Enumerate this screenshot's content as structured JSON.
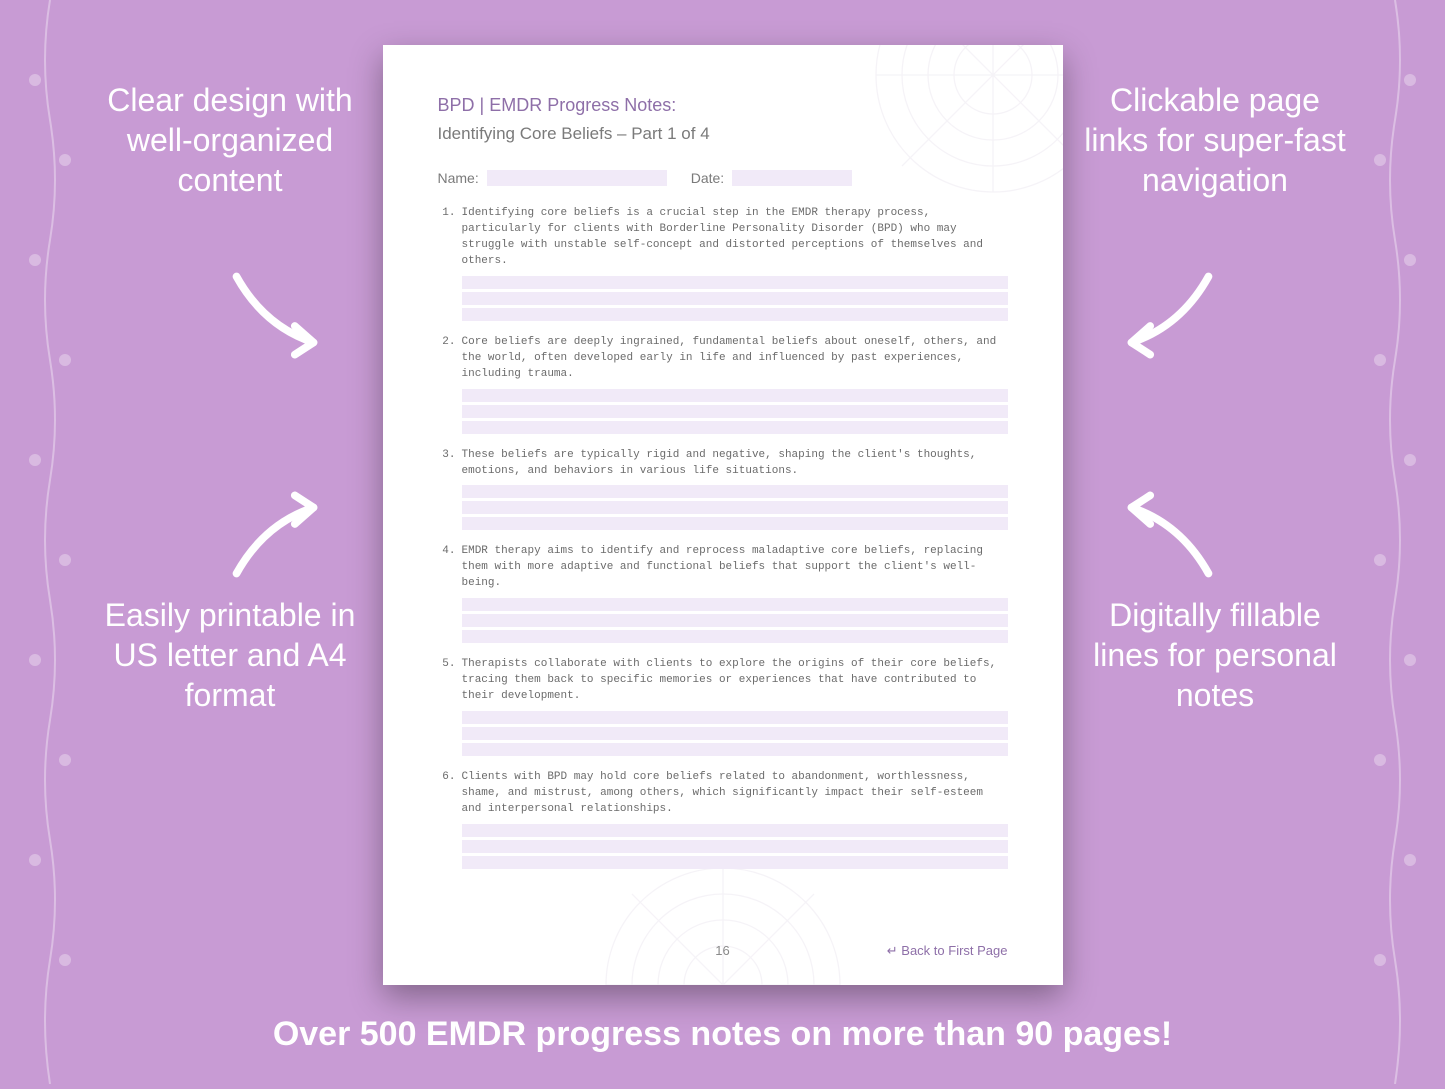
{
  "background_color": "#c89bd4",
  "callouts": {
    "top_left": "Clear design with well-organized content",
    "top_right": "Clickable page links for super-fast navigation",
    "bottom_left": "Easily printable in US letter and A4 format",
    "bottom_right": "Digitally fillable lines for personal notes"
  },
  "tagline": "Over 500 EMDR progress notes on more than 90 pages!",
  "document": {
    "title_line1": "BPD | EMDR Progress Notes:",
    "title_line2": "Identifying Core Beliefs  – Part 1 of 4",
    "name_label": "Name:",
    "date_label": "Date:",
    "items": [
      "Identifying core beliefs is a crucial step in the EMDR therapy process, particularly for clients with Borderline Personality Disorder (BPD) who may struggle with unstable self-concept and distorted perceptions of themselves and others.",
      "Core beliefs are deeply ingrained, fundamental beliefs about oneself, others, and the world, often developed early in life and influenced by past experiences, including trauma.",
      "These beliefs are typically rigid and negative, shaping the client's thoughts, emotions, and behaviors in various life situations.",
      "EMDR therapy aims to identify and reprocess maladaptive core beliefs, replacing them with more adaptive and functional beliefs that support the client's well-being.",
      "Therapists collaborate with clients to explore the origins of their core beliefs, tracing them back to specific memories or experiences that have contributed to their development.",
      "Clients with BPD may hold core beliefs related to abandonment, worthlessness, shame, and mistrust, among others, which significantly impact their self-esteem and interpersonal relationships."
    ],
    "page_number": "16",
    "back_link": "↵ Back to First Page",
    "fill_line_color": "#f1eaf8",
    "title_color": "#8e6fa8",
    "body_text_color": "#6b6b6b"
  },
  "style": {
    "callout_color": "#ffffff",
    "callout_fontsize": 32,
    "tagline_fontsize": 34,
    "arrow_color": "#ffffff",
    "page_bg": "#ffffff",
    "page_shadow": "rgba(0,0,0,0.35)"
  }
}
